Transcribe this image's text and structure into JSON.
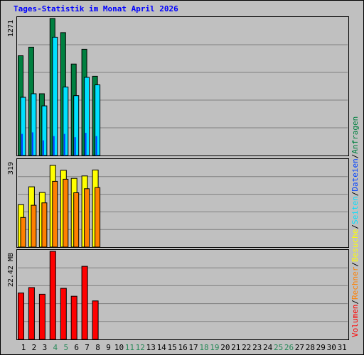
{
  "title": "Tages-Statistik im Monat April 2026",
  "colors": {
    "background": "#c0c0c0",
    "title": "#0000ff",
    "weekday_label": "#000000",
    "weekend_label": "#2a8a5a",
    "hits": "#008040",
    "files": "#0040ff",
    "pages": "#00e0ff",
    "visits": "#ffff00",
    "sites": "#ff8000",
    "kbytes": "#ff0000"
  },
  "chart_data": [
    {
      "type": "bar",
      "panel": "top",
      "axis_max_label": "1271",
      "ylim": [
        0,
        1271
      ],
      "categories": [
        "1",
        "2",
        "3",
        "4",
        "5",
        "6",
        "7",
        "8",
        "9",
        "10",
        "11",
        "12",
        "13",
        "14",
        "15",
        "16",
        "17",
        "18",
        "19",
        "20",
        "21",
        "22",
        "23",
        "24",
        "25",
        "26",
        "27",
        "28",
        "29",
        "30",
        "31"
      ],
      "weekend_days": [
        "4",
        "5",
        "11",
        "12",
        "18",
        "19",
        "25",
        "26"
      ],
      "series": [
        {
          "name": "Anfragen",
          "values": [
            925,
            1005,
            573,
            1271,
            1140,
            848,
            985,
            735,
            null,
            null,
            null,
            null,
            null,
            null,
            null,
            null,
            null,
            null,
            null,
            null,
            null,
            null,
            null,
            null,
            null,
            null,
            null,
            null,
            null,
            null,
            null
          ]
        },
        {
          "name": "Dateien",
          "values": [
            200,
            215,
            140,
            180,
            200,
            170,
            210,
            180,
            null,
            null,
            null,
            null,
            null,
            null,
            null,
            null,
            null,
            null,
            null,
            null,
            null,
            null,
            null,
            null,
            null,
            null,
            null,
            null,
            null,
            null,
            null
          ]
        },
        {
          "name": "Seiten",
          "values": [
            540,
            573,
            460,
            1097,
            635,
            555,
            725,
            655,
            null,
            null,
            null,
            null,
            null,
            null,
            null,
            null,
            null,
            null,
            null,
            null,
            null,
            null,
            null,
            null,
            null,
            null,
            null,
            null,
            null,
            null,
            null
          ]
        }
      ]
    },
    {
      "type": "bar",
      "panel": "middle",
      "axis_max_label": "319",
      "ylim": [
        0,
        319
      ],
      "series": [
        {
          "name": "Besuche",
          "values": [
            156,
            222,
            201,
            301,
            283,
            253,
            262,
            284,
            null,
            null,
            null,
            null,
            null,
            null,
            null,
            null,
            null,
            null,
            null,
            null,
            null,
            null,
            null,
            null,
            null,
            null,
            null,
            null,
            null,
            null,
            null
          ]
        },
        {
          "name": "Rechner",
          "values": [
            109,
            154,
            163,
            242,
            250,
            200,
            215,
            219,
            null,
            null,
            null,
            null,
            null,
            null,
            null,
            null,
            null,
            null,
            null,
            null,
            null,
            null,
            null,
            null,
            null,
            null,
            null,
            null,
            null,
            null,
            null
          ]
        }
      ]
    },
    {
      "type": "bar",
      "panel": "bottom",
      "axis_max_label": "22.42 MB",
      "ylim": [
        0,
        22.42
      ],
      "series": [
        {
          "name": "Volumen",
          "values": [
            11.8,
            13.2,
            11.5,
            22.42,
            13.0,
            11.0,
            18.6,
            9.8,
            null,
            null,
            null,
            null,
            null,
            null,
            null,
            null,
            null,
            null,
            null,
            null,
            null,
            null,
            null,
            null,
            null,
            null,
            null,
            null,
            null,
            null,
            null
          ]
        }
      ]
    }
  ],
  "legend": [
    {
      "label": "Volumen",
      "color": "#ff0000"
    },
    {
      "label": "/",
      "color": "#000000"
    },
    {
      "label": "Rechner",
      "color": "#ff8000"
    },
    {
      "label": "/",
      "color": "#000000"
    },
    {
      "label": "Besuche",
      "color": "#ffff00"
    },
    {
      "label": "/",
      "color": "#000000"
    },
    {
      "label": "Seiten",
      "color": "#00e0ff"
    },
    {
      "label": "/",
      "color": "#000000"
    },
    {
      "label": "Dateien",
      "color": "#0040ff"
    },
    {
      "label": "/",
      "color": "#000000"
    },
    {
      "label": "Anfragen",
      "color": "#008040"
    }
  ]
}
